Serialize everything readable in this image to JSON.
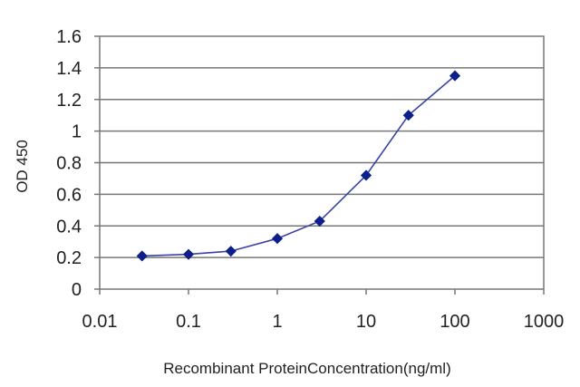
{
  "chart_data": {
    "type": "line",
    "title": "",
    "xlabel": "Recombinant ProteinConcentration(ng/ml)",
    "ylabel": "OD 450",
    "x_scale": "log",
    "xlim": [
      0.01,
      1000
    ],
    "ylim": [
      0,
      1.6
    ],
    "x_ticks": [
      0.01,
      0.1,
      1,
      10,
      100,
      1000
    ],
    "x_tick_labels": [
      "0.01",
      "0.1",
      "1",
      "10",
      "100",
      "1000"
    ],
    "y_ticks": [
      0,
      0.2,
      0.4,
      0.6,
      0.8,
      1,
      1.2,
      1.4,
      1.6
    ],
    "y_tick_labels": [
      "0",
      "0.2",
      "0.4",
      "0.6",
      "0.8",
      "1",
      "1.2",
      "1.4",
      "1.6"
    ],
    "grid": "horizontal",
    "legend": "none",
    "series": [
      {
        "x": [
          0.03,
          0.1,
          0.3,
          1,
          3,
          10,
          30,
          100
        ],
        "y": [
          0.21,
          0.22,
          0.24,
          0.32,
          0.43,
          0.72,
          1.1,
          1.35
        ]
      }
    ],
    "colors": {
      "line": "#3b43a6",
      "marker": "#0d1f8a",
      "grid": "#777777",
      "axis": "#777777"
    }
  }
}
